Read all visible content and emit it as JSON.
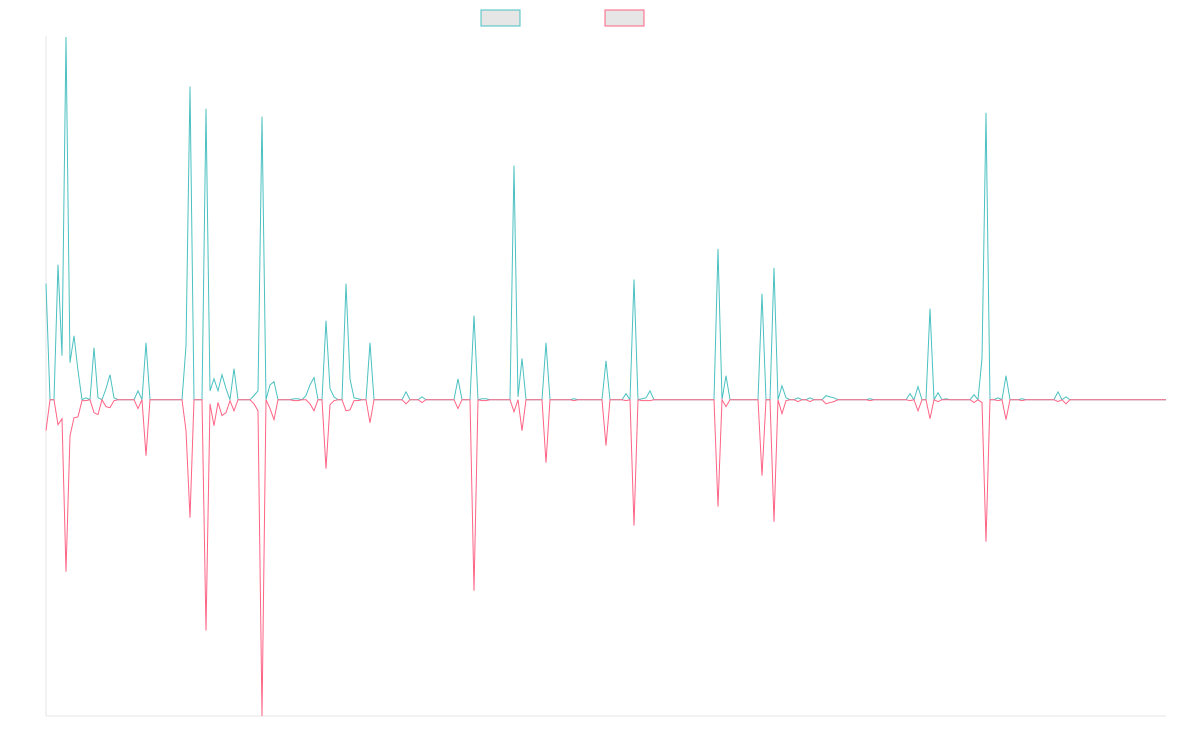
{
  "chart_data": {
    "type": "line",
    "legend": "top",
    "ylim": [
      -100,
      115
    ],
    "categories": [
      null,
      null,
      null,
      null,
      null,
      null,
      null,
      null,
      null,
      null,
      null,
      null,
      null,
      null,
      null,
      null,
      null,
      null,
      null,
      null,
      null,
      null,
      null,
      null,
      null,
      null,
      null,
      null,
      null,
      null,
      null,
      null,
      null,
      null,
      null,
      null,
      null,
      null,
      null,
      null,
      null,
      null,
      null,
      null,
      null,
      null,
      null,
      null,
      null,
      null,
      null,
      null,
      null,
      null,
      null,
      null,
      null,
      null,
      null,
      null,
      null,
      null,
      null,
      null,
      null,
      null,
      null,
      null,
      null,
      null,
      null,
      null,
      null,
      null,
      null,
      null,
      null,
      null,
      null,
      null,
      null,
      null,
      null,
      null,
      null,
      null,
      null,
      null,
      null,
      null,
      null,
      null,
      null,
      null,
      null,
      null,
      null,
      null,
      null,
      null,
      null,
      null,
      null,
      null,
      null,
      null,
      null,
      null,
      null,
      null,
      null,
      null,
      null,
      null,
      null,
      null,
      null,
      null,
      null,
      null,
      null,
      null,
      null,
      null,
      null,
      null,
      null,
      null,
      null,
      null,
      null,
      null,
      null,
      null,
      null,
      null,
      null,
      null,
      null,
      null,
      null,
      null,
      null,
      null,
      null,
      null,
      null,
      null,
      null,
      null,
      null,
      null,
      null,
      null,
      null,
      null,
      null,
      null,
      null,
      null,
      null,
      null,
      null,
      null,
      null,
      null,
      null,
      null,
      null,
      null,
      null,
      null,
      null,
      null,
      null,
      null,
      null,
      null,
      null,
      null,
      null,
      null,
      null,
      null,
      null,
      null,
      null,
      null,
      null,
      null,
      null,
      null,
      null,
      null,
      null,
      null,
      null,
      null,
      null,
      null,
      null,
      null,
      null,
      null,
      null,
      null,
      null,
      null,
      null,
      null,
      null,
      null,
      null,
      null,
      null,
      null,
      null,
      null,
      null,
      null,
      null,
      null,
      null,
      null,
      null,
      null,
      null,
      null,
      null,
      null,
      null,
      null,
      null,
      null,
      null,
      null,
      null,
      null,
      null,
      null,
      null,
      null,
      null,
      null,
      null,
      null,
      null,
      null,
      null,
      null,
      null,
      null,
      null,
      null,
      null,
      null,
      null,
      null,
      null,
      null,
      null,
      null,
      null,
      null,
      null,
      null,
      null,
      null,
      null,
      null,
      null,
      null,
      null,
      null,
      null,
      null,
      null,
      null,
      null,
      null,
      null
    ],
    "series": [
      {
        "color": "#4bc0c0",
        "values": [
          36.7,
          0,
          0,
          42.7,
          13.9,
          114.7,
          11.7,
          20.2,
          9.2,
          0,
          0.6,
          0,
          16.4,
          0.6,
          0,
          3.5,
          7.9,
          0.6,
          0,
          0,
          0,
          0,
          0,
          2.8,
          0,
          18,
          0,
          0,
          0,
          0,
          0,
          0,
          0,
          0,
          0,
          17,
          99,
          0,
          0,
          0,
          92,
          2.8,
          6.6,
          2.8,
          7.9,
          3.5,
          0,
          9.8,
          0,
          0,
          0,
          0,
          1.3,
          2.8,
          89.5,
          0,
          4.7,
          5.7,
          0,
          0,
          0,
          0,
          0.3,
          0.3,
          0,
          1.3,
          4.7,
          7,
          0,
          0,
          25,
          3.5,
          0.9,
          0,
          0,
          36.7,
          6.6,
          0.6,
          0.3,
          0,
          0,
          18,
          0,
          0,
          0,
          0,
          0,
          0,
          0,
          0,
          2.5,
          0,
          0,
          0,
          0.9,
          0,
          0,
          0,
          0,
          0,
          0,
          0,
          0,
          6.6,
          0,
          0,
          0,
          26.6,
          0,
          0.3,
          0.3,
          0,
          0,
          0,
          0,
          0,
          0,
          74,
          0.9,
          13,
          0,
          0,
          0,
          0,
          0,
          18,
          0,
          0,
          0,
          0,
          0,
          0,
          0.3,
          0,
          0,
          0,
          0,
          0,
          0,
          0,
          12.3,
          0,
          0,
          0,
          0,
          1.9,
          0,
          38,
          0,
          0.3,
          0.6,
          2.8,
          0,
          0,
          0,
          0,
          0,
          0,
          0,
          0,
          0,
          0,
          0,
          0,
          0,
          0,
          0,
          0,
          47.7,
          0,
          7.6,
          0,
          0,
          0,
          0,
          0,
          0,
          0,
          0,
          33.5,
          0,
          0,
          41.7,
          0,
          4.4,
          0.6,
          0,
          0,
          0.6,
          0,
          0,
          0.6,
          0,
          0,
          0,
          1.3,
          0.9,
          0.6,
          0,
          0,
          0,
          0,
          0,
          0,
          0,
          0,
          0.3,
          0,
          0,
          0,
          0,
          0,
          0,
          0,
          0,
          0,
          1.9,
          0,
          4.1,
          0,
          0,
          28.8,
          0,
          2.2,
          0,
          0.3,
          0,
          0,
          0,
          0,
          0,
          0,
          1.6,
          0,
          13,
          90.7,
          0,
          0,
          0.6,
          0,
          7.6,
          0,
          0,
          0,
          0.3,
          0,
          0,
          0,
          0,
          0,
          0,
          0,
          0,
          2.5,
          0,
          0.9,
          0,
          0,
          0,
          0,
          0,
          0,
          0,
          0,
          0,
          0,
          0,
          0,
          0,
          0,
          0,
          0,
          0,
          0,
          0,
          0,
          0,
          0,
          0,
          0,
          0
        ]
      },
      {
        "color": "#ff6384",
        "values": [
          -9.8,
          0,
          0,
          -7.9,
          -6,
          -54.4,
          -11.4,
          -5.7,
          -5.4,
          -0.3,
          -0.3,
          0,
          -4.1,
          -4.7,
          0,
          -2.2,
          -2.5,
          -0.3,
          0,
          0,
          0,
          0,
          0,
          -2.8,
          0,
          -17.7,
          0,
          0,
          0,
          0,
          0,
          0,
          0,
          0,
          0,
          -9.8,
          -37.3,
          0,
          0,
          0,
          -73,
          -1.3,
          -8.2,
          -0.9,
          -5,
          -4.1,
          -0.3,
          -3.5,
          0,
          0,
          0,
          0,
          -1.3,
          -3.5,
          -100,
          0,
          -2.8,
          -6.3,
          0,
          0,
          0,
          0,
          -0.3,
          -0.3,
          0,
          0,
          -1.3,
          -3.5,
          0,
          0,
          -21.8,
          -1.6,
          -0.3,
          0,
          0,
          -3.5,
          -3.2,
          -0.3,
          -0.3,
          0,
          0,
          -7.3,
          0,
          0,
          0,
          0,
          0,
          0,
          0,
          0,
          -1.3,
          0,
          0,
          0,
          -0.9,
          0,
          0,
          0,
          0,
          0,
          0,
          0,
          0,
          -2.8,
          0,
          0,
          0,
          -60.4,
          0,
          -0.3,
          -0.3,
          0,
          0,
          0,
          0,
          0,
          0,
          -3.8,
          0,
          -9.8,
          0,
          0,
          0,
          0,
          0,
          -19.9,
          0,
          0,
          0,
          0,
          0,
          0,
          -0.3,
          0,
          0,
          0,
          0,
          0,
          0,
          0,
          -14.5,
          0,
          0,
          0,
          0,
          -0.3,
          0,
          -39.8,
          0,
          -0.3,
          -0.3,
          -0.3,
          0,
          0,
          0,
          0,
          0,
          0,
          0,
          0,
          0,
          0,
          0,
          0,
          0,
          0,
          0,
          0,
          -33.8,
          0,
          -2.2,
          0,
          0,
          0,
          0,
          0,
          0,
          0,
          0,
          -24,
          0,
          0,
          -38.6,
          0,
          -4.4,
          -0.3,
          0,
          0,
          -0.6,
          0,
          0,
          -0.6,
          0,
          0,
          0,
          -1.3,
          -0.9,
          -0.6,
          0,
          0,
          0,
          0,
          0,
          0,
          0,
          0,
          -0.3,
          0,
          0,
          0,
          0,
          0,
          0,
          0,
          0,
          0,
          -0.3,
          0,
          -3.5,
          0,
          0,
          -6,
          0,
          -0.6,
          0,
          0,
          0,
          0,
          0,
          0,
          0,
          0,
          -0.9,
          0,
          -0.9,
          -44.9,
          0,
          0,
          -0.3,
          0,
          -6.3,
          0,
          0,
          0,
          -0.3,
          0,
          0,
          0,
          0,
          0,
          0,
          0,
          0,
          -0.6,
          0,
          -1.3,
          0,
          0,
          0,
          0,
          0,
          0,
          0,
          0,
          0,
          0,
          0,
          0,
          0,
          0,
          0,
          0,
          0,
          0,
          0,
          0,
          0,
          0,
          0,
          0,
          0
        ]
      }
    ]
  }
}
